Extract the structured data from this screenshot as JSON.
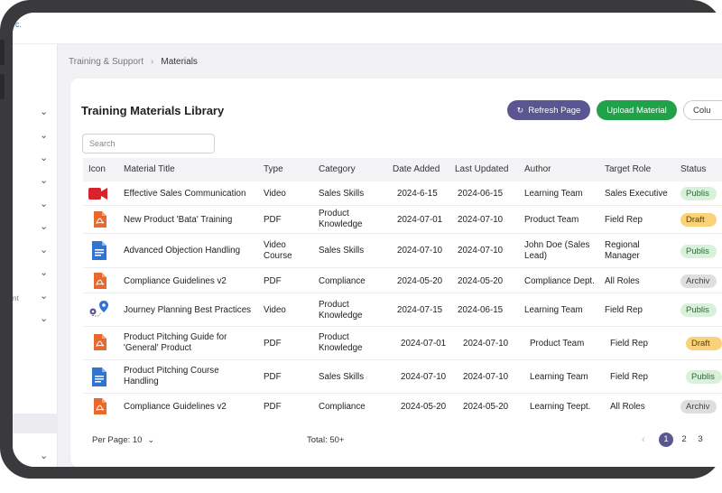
{
  "brand": {
    "text": "c."
  },
  "breadcrumb": {
    "parent": "Training & Support",
    "separator": "›",
    "current": "Materials"
  },
  "sidebar": {
    "fragment_1": "nt"
  },
  "card": {
    "title": "Training Materials Library",
    "refresh_label": "Refresh Page",
    "upload_label": "Upload Material",
    "columns_label": "Colu",
    "search_placeholder": "Search"
  },
  "table": {
    "headers": [
      "Icon",
      "Material Title",
      "Type",
      "Category",
      "Date Added",
      "Last Updated",
      "Author",
      "Target Role",
      "Status"
    ],
    "rows": [
      {
        "icon": "video-icon",
        "title": "Effective Sales Communication",
        "type": "Video",
        "category": "Sales Skills",
        "date_added": "2024-6-15",
        "last_updated": "2024-06-15",
        "author": "Learning Team",
        "target_role": "Sales Executive",
        "status": "Publis"
      },
      {
        "icon": "pdf-icon",
        "title": "New Product 'Bata' Training",
        "type": "PDF",
        "category": "Product Knowledge",
        "date_added": "2024-07-01",
        "last_updated": "2024-07-10",
        "author": "Product Team",
        "target_role": "Field Rep",
        "status": "Draft"
      },
      {
        "icon": "document-icon",
        "title": "Advanced Objection Handling",
        "type": "Video Course",
        "category": "Sales Skills",
        "date_added": "2024-07-10",
        "last_updated": "2024-07-10",
        "author": "John Doe (Sales Lead)",
        "target_role": "Regional Manager",
        "status": "Publis"
      },
      {
        "icon": "pdf-icon",
        "title": "Compliance Guidelines v2",
        "type": "PDF",
        "category": "Compliance",
        "date_added": "2024-05-20",
        "last_updated": "2024-05-20",
        "author": "Compliance Dept.",
        "target_role": "All Roles",
        "status": "Archiv"
      },
      {
        "icon": "map-pin-icon",
        "title": "Journey Planning Best Practices",
        "type": "Video",
        "category": "Product Knowledge",
        "date_added": "2024-07-15",
        "last_updated": "2024-06-15",
        "author": "Learning Team",
        "target_role": "Field Rep",
        "status": "Publis"
      },
      {
        "icon": "pdf-icon",
        "title": "Product Pitching Guide for 'General' Product",
        "type": "PDF",
        "category": "Product Knowledge",
        "date_added": "2024-07-01",
        "last_updated": "2024-07-10",
        "author": "Product Team",
        "target_role": "Field Rep",
        "status": "Draft"
      },
      {
        "icon": "document-icon",
        "title": "Product Pitching Course Handling",
        "type": "PDF",
        "category": "Sales Skills",
        "date_added": "2024-07-10",
        "last_updated": "2024-07-10",
        "author": "Learning Team",
        "target_role": "Field Rep",
        "status": "Publis"
      },
      {
        "icon": "pdf-icon",
        "title": "Compliance Guidelines v2",
        "type": "PDF",
        "category": "Compliance",
        "date_added": "2024-05-20",
        "last_updated": "2024-05-20",
        "author": "Learning Teept.",
        "target_role": "All Roles",
        "status": "Archiv"
      }
    ]
  },
  "footer": {
    "per_page_label": "Per Page: 10",
    "total_label": "Total: 50+",
    "pages": [
      "1",
      "2",
      "3"
    ],
    "active_page": "1",
    "prev_symbol": "‹"
  },
  "colors": {
    "accent_purple": "#5a5691",
    "upload_green": "#21a24a",
    "published_bg": "#d9f1db",
    "draft_bg": "#f9d27a",
    "archived_bg": "#dedede",
    "pdf_orange": "#e8692e",
    "doc_blue": "#2f74d0",
    "video_red": "#d8232a"
  }
}
